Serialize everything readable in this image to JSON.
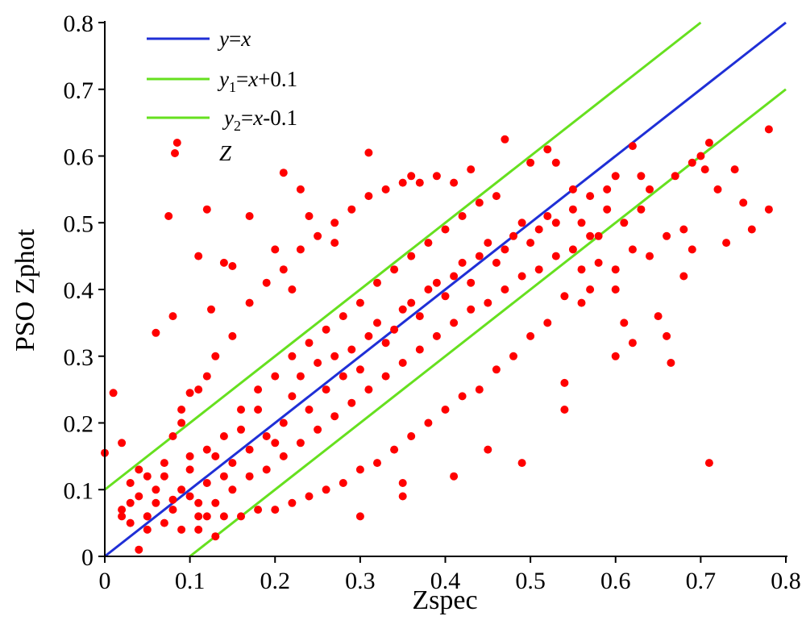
{
  "chart_data": {
    "type": "scatter",
    "xlabel": "Zspec",
    "ylabel": "PSO Zphot",
    "xlim": [
      0,
      0.8
    ],
    "ylim": [
      0,
      0.8
    ],
    "x_ticks": [
      0,
      0.1,
      0.2,
      0.3,
      0.4,
      0.5,
      0.6,
      0.7,
      0.8
    ],
    "y_ticks": [
      0,
      0.1,
      0.2,
      0.3,
      0.4,
      0.5,
      0.6,
      0.7,
      0.8
    ],
    "x_tick_labels": [
      "0",
      "0.1",
      "0.2",
      "0.3",
      "0.4",
      "0.5",
      "0.6",
      "0.7",
      "0.8"
    ],
    "y_tick_labels": [
      "0",
      "0.1",
      "0.2",
      "0.3",
      "0.4",
      "0.5",
      "0.6",
      "0.7",
      "0.8"
    ],
    "grid": false,
    "legend_position": "top-left",
    "lines": [
      {
        "name": "y=x",
        "color": "#1f2fd6",
        "x": [
          0,
          0.8
        ],
        "y": [
          0,
          0.8
        ],
        "legend": {
          "v": "y",
          "sub": "",
          "eq": "=",
          "x": "x",
          "rest": ""
        }
      },
      {
        "name": "y1=x+0.1",
        "color": "#66e01f",
        "x": [
          0,
          0.7
        ],
        "y": [
          0.1,
          0.8
        ],
        "legend": {
          "v": "y",
          "sub": "1",
          "eq": "=",
          "x": "x",
          "rest": "+0.1"
        }
      },
      {
        "name": "y2=x-0.1",
        "color": "#66e01f",
        "x": [
          0.1,
          0.8
        ],
        "y": [
          0,
          0.7
        ],
        "legend": {
          "v": "y",
          "sub": "2",
          "eq": "=",
          "x": "x",
          "rest": "-0.1"
        }
      }
    ],
    "series": [
      {
        "name": "Z",
        "color": "#ff0000",
        "points": [
          [
            0.08,
            0.07
          ],
          [
            0.06,
            0.08
          ],
          [
            0.1,
            0.09
          ],
          [
            0.12,
            0.11
          ],
          [
            0.05,
            0.06
          ],
          [
            0.09,
            0.1
          ],
          [
            0.14,
            0.12
          ],
          [
            0.11,
            0.08
          ],
          [
            0.15,
            0.14
          ],
          [
            0.17,
            0.16
          ],
          [
            0.13,
            0.15
          ],
          [
            0.19,
            0.18
          ],
          [
            0.21,
            0.2
          ],
          [
            0.18,
            0.22
          ],
          [
            0.16,
            0.19
          ],
          [
            0.2,
            0.17
          ],
          [
            0.22,
            0.24
          ],
          [
            0.24,
            0.22
          ],
          [
            0.26,
            0.25
          ],
          [
            0.23,
            0.27
          ],
          [
            0.25,
            0.29
          ],
          [
            0.28,
            0.27
          ],
          [
            0.27,
            0.3
          ],
          [
            0.3,
            0.28
          ],
          [
            0.29,
            0.31
          ],
          [
            0.31,
            0.33
          ],
          [
            0.33,
            0.32
          ],
          [
            0.32,
            0.35
          ],
          [
            0.34,
            0.34
          ],
          [
            0.35,
            0.37
          ],
          [
            0.37,
            0.36
          ],
          [
            0.36,
            0.38
          ],
          [
            0.38,
            0.4
          ],
          [
            0.4,
            0.39
          ],
          [
            0.39,
            0.41
          ],
          [
            0.41,
            0.42
          ],
          [
            0.43,
            0.41
          ],
          [
            0.42,
            0.44
          ],
          [
            0.44,
            0.45
          ],
          [
            0.46,
            0.44
          ],
          [
            0.45,
            0.47
          ],
          [
            0.47,
            0.46
          ],
          [
            0.48,
            0.48
          ],
          [
            0.5,
            0.47
          ],
          [
            0.49,
            0.5
          ],
          [
            0.51,
            0.49
          ],
          [
            0.52,
            0.51
          ],
          [
            0.53,
            0.5
          ],
          [
            0.06,
            0.1
          ],
          [
            0.04,
            0.09
          ],
          [
            0.03,
            0.08
          ],
          [
            0.02,
            0.07
          ],
          [
            0.07,
            0.12
          ],
          [
            0.1,
            0.13
          ],
          [
            0.12,
            0.16
          ],
          [
            0.14,
            0.18
          ],
          [
            0.16,
            0.22
          ],
          [
            0.18,
            0.25
          ],
          [
            0.2,
            0.27
          ],
          [
            0.22,
            0.3
          ],
          [
            0.24,
            0.32
          ],
          [
            0.26,
            0.34
          ],
          [
            0.28,
            0.36
          ],
          [
            0.3,
            0.38
          ],
          [
            0.32,
            0.41
          ],
          [
            0.34,
            0.43
          ],
          [
            0.36,
            0.45
          ],
          [
            0.38,
            0.47
          ],
          [
            0.4,
            0.49
          ],
          [
            0.42,
            0.51
          ],
          [
            0.44,
            0.53
          ],
          [
            0.46,
            0.54
          ],
          [
            0.11,
            0.06
          ],
          [
            0.13,
            0.08
          ],
          [
            0.15,
            0.1
          ],
          [
            0.17,
            0.12
          ],
          [
            0.19,
            0.13
          ],
          [
            0.21,
            0.15
          ],
          [
            0.23,
            0.17
          ],
          [
            0.25,
            0.19
          ],
          [
            0.27,
            0.21
          ],
          [
            0.29,
            0.23
          ],
          [
            0.31,
            0.25
          ],
          [
            0.33,
            0.27
          ],
          [
            0.35,
            0.29
          ],
          [
            0.37,
            0.31
          ],
          [
            0.39,
            0.33
          ],
          [
            0.41,
            0.35
          ],
          [
            0.43,
            0.37
          ],
          [
            0.45,
            0.38
          ],
          [
            0.47,
            0.4
          ],
          [
            0.49,
            0.42
          ],
          [
            0.51,
            0.43
          ],
          [
            0.53,
            0.45
          ],
          [
            0.55,
            0.46
          ],
          [
            0.57,
            0.48
          ],
          [
            0.0,
            0.155
          ],
          [
            0.01,
            0.245
          ],
          [
            0.02,
            0.17
          ],
          [
            0.05,
            0.06
          ],
          [
            0.04,
            0.01
          ],
          [
            0.06,
            0.335
          ],
          [
            0.08,
            0.085
          ],
          [
            0.075,
            0.51
          ],
          [
            0.08,
            0.36
          ],
          [
            0.085,
            0.62
          ],
          [
            0.1,
            0.245
          ],
          [
            0.11,
            0.45
          ],
          [
            0.12,
            0.52
          ],
          [
            0.125,
            0.37
          ],
          [
            0.09,
            0.22
          ],
          [
            0.1,
            0.15
          ],
          [
            0.14,
            0.44
          ],
          [
            0.15,
            0.435
          ],
          [
            0.17,
            0.51
          ],
          [
            0.2,
            0.46
          ],
          [
            0.21,
            0.575
          ],
          [
            0.22,
            0.4
          ],
          [
            0.23,
            0.55
          ],
          [
            0.24,
            0.51
          ],
          [
            0.27,
            0.47
          ],
          [
            0.31,
            0.605
          ],
          [
            0.36,
            0.57
          ],
          [
            0.35,
            0.11
          ],
          [
            0.3,
            0.06
          ],
          [
            0.35,
            0.09
          ],
          [
            0.41,
            0.12
          ],
          [
            0.45,
            0.16
          ],
          [
            0.49,
            0.14
          ],
          [
            0.54,
            0.22
          ],
          [
            0.54,
            0.26
          ],
          [
            0.5,
            0.59
          ],
          [
            0.52,
            0.61
          ],
          [
            0.47,
            0.625
          ],
          [
            0.53,
            0.59
          ],
          [
            0.55,
            0.55
          ],
          [
            0.57,
            0.54
          ],
          [
            0.59,
            0.52
          ],
          [
            0.6,
            0.57
          ],
          [
            0.6,
            0.4
          ],
          [
            0.6,
            0.3
          ],
          [
            0.61,
            0.35
          ],
          [
            0.62,
            0.615
          ],
          [
            0.62,
            0.32
          ],
          [
            0.63,
            0.57
          ],
          [
            0.64,
            0.55
          ],
          [
            0.65,
            0.36
          ],
          [
            0.66,
            0.33
          ],
          [
            0.665,
            0.29
          ],
          [
            0.67,
            0.57
          ],
          [
            0.68,
            0.49
          ],
          [
            0.68,
            0.42
          ],
          [
            0.69,
            0.59
          ],
          [
            0.69,
            0.46
          ],
          [
            0.7,
            0.6
          ],
          [
            0.705,
            0.58
          ],
          [
            0.71,
            0.14
          ],
          [
            0.71,
            0.62
          ],
          [
            0.72,
            0.55
          ],
          [
            0.73,
            0.47
          ],
          [
            0.74,
            0.58
          ],
          [
            0.75,
            0.53
          ],
          [
            0.76,
            0.49
          ],
          [
            0.78,
            0.64
          ],
          [
            0.78,
            0.52
          ],
          [
            0.66,
            0.48
          ],
          [
            0.64,
            0.45
          ],
          [
            0.58,
            0.48
          ],
          [
            0.56,
            0.5
          ],
          [
            0.55,
            0.52
          ],
          [
            0.59,
            0.55
          ],
          [
            0.61,
            0.5
          ],
          [
            0.63,
            0.52
          ],
          [
            0.58,
            0.44
          ],
          [
            0.57,
            0.4
          ],
          [
            0.56,
            0.43
          ],
          [
            0.54,
            0.39
          ],
          [
            0.56,
            0.38
          ],
          [
            0.6,
            0.43
          ],
          [
            0.62,
            0.46
          ],
          [
            0.52,
            0.35
          ],
          [
            0.5,
            0.33
          ],
          [
            0.48,
            0.3
          ],
          [
            0.46,
            0.28
          ],
          [
            0.44,
            0.25
          ],
          [
            0.42,
            0.24
          ],
          [
            0.4,
            0.22
          ],
          [
            0.38,
            0.2
          ],
          [
            0.36,
            0.18
          ],
          [
            0.34,
            0.16
          ],
          [
            0.32,
            0.14
          ],
          [
            0.3,
            0.13
          ],
          [
            0.28,
            0.11
          ],
          [
            0.26,
            0.1
          ],
          [
            0.24,
            0.09
          ],
          [
            0.22,
            0.08
          ],
          [
            0.2,
            0.07
          ],
          [
            0.18,
            0.07
          ],
          [
            0.16,
            0.06
          ],
          [
            0.14,
            0.06
          ],
          [
            0.13,
            0.3
          ],
          [
            0.15,
            0.33
          ],
          [
            0.17,
            0.38
          ],
          [
            0.19,
            0.41
          ],
          [
            0.21,
            0.43
          ],
          [
            0.23,
            0.46
          ],
          [
            0.25,
            0.48
          ],
          [
            0.27,
            0.5
          ],
          [
            0.29,
            0.52
          ],
          [
            0.31,
            0.54
          ],
          [
            0.33,
            0.55
          ],
          [
            0.35,
            0.56
          ],
          [
            0.37,
            0.56
          ],
          [
            0.39,
            0.57
          ],
          [
            0.41,
            0.56
          ],
          [
            0.43,
            0.58
          ],
          [
            0.08,
            0.18
          ],
          [
            0.09,
            0.2
          ],
          [
            0.11,
            0.25
          ],
          [
            0.12,
            0.27
          ],
          [
            0.07,
            0.14
          ],
          [
            0.05,
            0.12
          ],
          [
            0.03,
            0.11
          ],
          [
            0.04,
            0.13
          ],
          [
            0.02,
            0.06
          ],
          [
            0.03,
            0.05
          ],
          [
            0.05,
            0.04
          ],
          [
            0.07,
            0.05
          ],
          [
            0.09,
            0.04
          ],
          [
            0.11,
            0.04
          ],
          [
            0.13,
            0.03
          ],
          [
            0.12,
            0.06
          ]
        ]
      }
    ]
  }
}
